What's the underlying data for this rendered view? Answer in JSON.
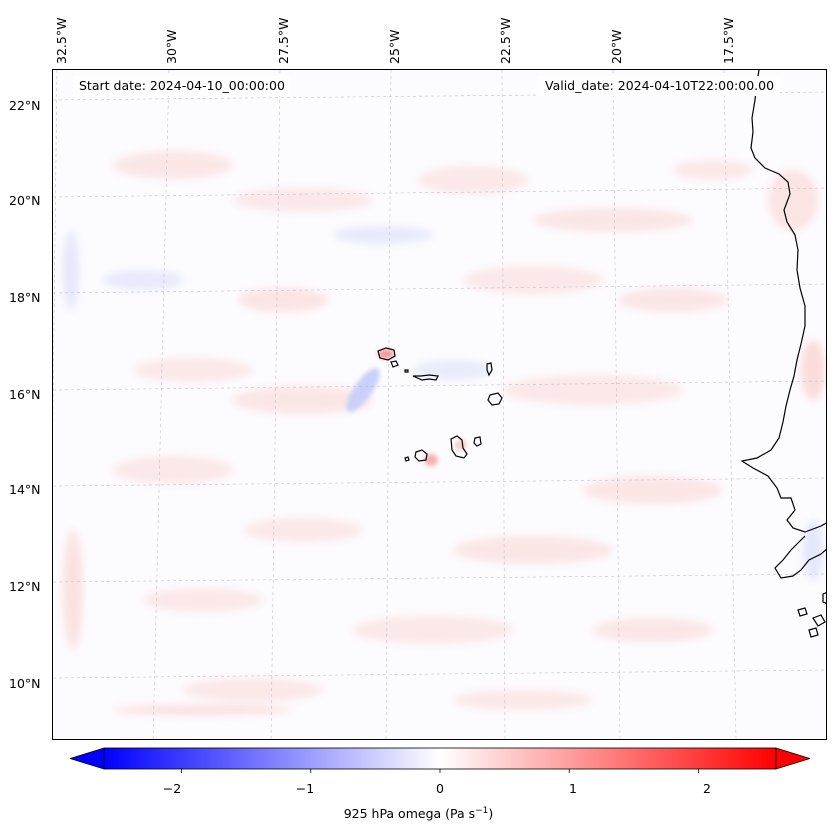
{
  "map": {
    "start_date": "Start date: 2024-04-10_00:00:00",
    "valid_date": "Valid_date: 2024-04-10T22:00:00.00",
    "lon_labels": [
      "32.5°W",
      "30°W",
      "27.5°W",
      "25°W",
      "22.5°W",
      "20°W",
      "17.5°W"
    ],
    "lat_labels": [
      "22°N",
      "20°N",
      "18°N",
      "16°N",
      "14°N",
      "12°N",
      "10°N"
    ]
  },
  "colorbar": {
    "label": "925 hPa omega (Pa s",
    "label_sup": "−1",
    "label_close": ")",
    "ticks": [
      "−2",
      "−1",
      "0",
      "1",
      "2"
    ],
    "tick_values": [
      -2,
      -1,
      0,
      1,
      2
    ],
    "vmin": -2.6,
    "vmax": 2.6,
    "cmap": "bwr",
    "neg_color": "#0000ff",
    "mid_color": "#ffffff",
    "pos_color": "#ff0000"
  },
  "colors": {
    "field_background": "#fcfbfe",
    "coastline": "#000000",
    "gridline": "#b4b4c8"
  }
}
